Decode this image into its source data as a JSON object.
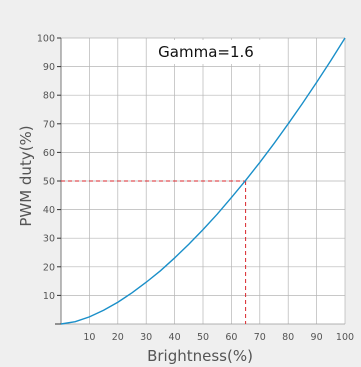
{
  "chart_data": {
    "type": "line",
    "xlabel": "Brightness(%)",
    "ylabel": "PWM duty(%)",
    "xlim": [
      0,
      100
    ],
    "ylim": [
      0,
      100
    ],
    "grid": true,
    "x_ticks": [
      10,
      20,
      30,
      40,
      50,
      60,
      70,
      80,
      90,
      100
    ],
    "y_ticks": [
      10,
      20,
      30,
      40,
      50,
      60,
      70,
      80,
      90,
      100
    ],
    "annotation": "Gamma=1.6",
    "gamma": 1.6,
    "series": [
      {
        "x": [
          0,
          5,
          10,
          15,
          20,
          25,
          30,
          35,
          40,
          45,
          50,
          55,
          60,
          65,
          70,
          75,
          80,
          85,
          90,
          95,
          100
        ],
        "y": [
          0,
          0.8,
          2.5,
          4.8,
          7.6,
          10.9,
          14.6,
          18.6,
          23.1,
          27.9,
          33.0,
          38.4,
          44.2,
          50.2,
          56.5,
          63.1,
          70.0,
          77.1,
          84.5,
          92.1,
          100
        ],
        "color": "#1a8fc9"
      }
    ],
    "reference_point": {
      "x": 65,
      "y": 50,
      "color": "#d9262b"
    }
  }
}
